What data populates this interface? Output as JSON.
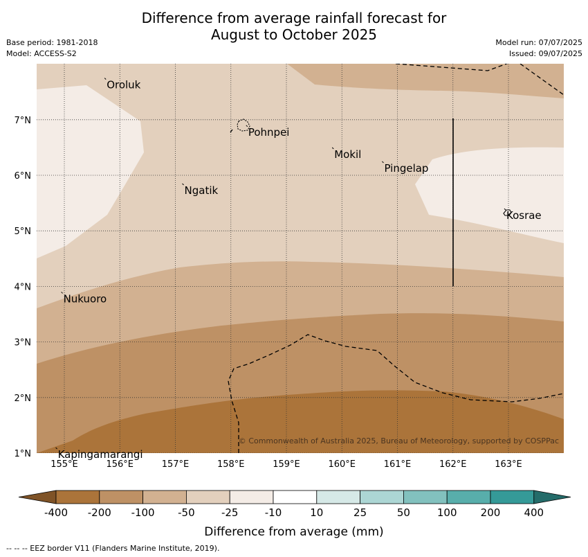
{
  "title_line1": "Difference from average rainfall forecast for",
  "title_line2": "August to October 2025",
  "base_period": "Base period: 1981-2018",
  "model": "Model: ACCESS-S2",
  "model_run": "Model run: 07/07/2025",
  "issued": "Issued: 09/07/2025",
  "copyright": "© Commonwealth of Australia 2025, Bureau of Meteorology, supported by COSPPac",
  "footer_note": "--  --  -- EEZ border V11 (Flanders Marine Institute, 2019).",
  "longitude_labels": [
    "155°E",
    "156°E",
    "157°E",
    "158°E",
    "159°E",
    "160°E",
    "161°E",
    "162°E",
    "163°E"
  ],
  "latitude_labels": [
    "7°N",
    "6°N",
    "5°N",
    "4°N",
    "3°N",
    "2°N",
    "1°N"
  ],
  "places": [
    {
      "name": "Oroluk",
      "lon": 155.75,
      "lat": 7.7
    },
    {
      "name": "Pohnpei",
      "lon": 158.3,
      "lat": 6.85
    },
    {
      "name": "Mokil",
      "lon": 159.85,
      "lat": 6.45
    },
    {
      "name": "Pingelap",
      "lon": 160.75,
      "lat": 6.2
    },
    {
      "name": "Ngatik",
      "lon": 157.15,
      "lat": 5.8
    },
    {
      "name": "Kosrae",
      "lon": 162.95,
      "lat": 5.35
    },
    {
      "name": "Nukuoro",
      "lon": 154.97,
      "lat": 3.85
    },
    {
      "name": "Kapingamarangi",
      "lon": 154.87,
      "lat": 1.05
    }
  ],
  "colorbar": {
    "label": "Difference from average (mm)",
    "tick_labels": [
      "-400",
      "-200",
      "-100",
      "-50",
      "-25",
      "-10",
      "10",
      "25",
      "50",
      "100",
      "200",
      "400"
    ],
    "colors": [
      "#ab743a",
      "#be9165",
      "#d2b191",
      "#e3d0bd",
      "#f4ece6",
      "#ffffff",
      "#d6e9e7",
      "#acd6d4",
      "#82c1be",
      "#58aeab",
      "#359a98"
    ],
    "under_color": "#7f5327",
    "over_color": "#246c6a"
  }
}
